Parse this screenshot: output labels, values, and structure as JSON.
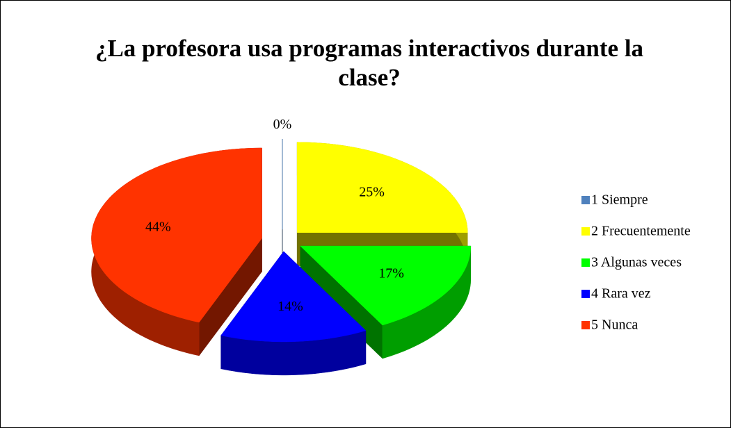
{
  "chart_data": {
    "type": "pie3d",
    "title": "¿La profesora usa programas interactivos durante la clase?",
    "categories": [
      "1 Siempre",
      "2 Frecuentemente",
      "3 Algunas veces",
      "4 Rara vez",
      "5 Nunca"
    ],
    "values": [
      0,
      25,
      17,
      14,
      44
    ],
    "value_labels": [
      "0%",
      "25%",
      "17%",
      "14%",
      "44%"
    ],
    "colors": [
      "#4f81bd",
      "#ffff00",
      "#00ff00",
      "#0000ff",
      "#ff3300"
    ],
    "legend": "right"
  }
}
